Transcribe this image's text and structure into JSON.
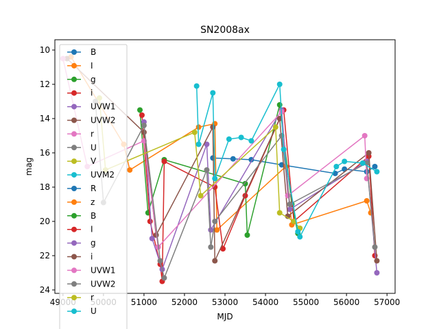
{
  "chart_data": {
    "type": "line",
    "title": "SN2008ax",
    "xlabel": "MJD",
    "ylabel": "mag",
    "xlim": [
      48800,
      57200
    ],
    "ylim": [
      24.2,
      9.4
    ],
    "y_inverted": true,
    "grid": false,
    "legend_placement": "upper-left",
    "xticks": [
      {
        "value": 49000,
        "label": "49000"
      },
      {
        "value": 50000,
        "label": "50000"
      },
      {
        "value": 51000,
        "label": "51000"
      },
      {
        "value": 52000,
        "label": "52000"
      },
      {
        "value": 53000,
        "label": "53000"
      },
      {
        "value": 54000,
        "label": "54000"
      },
      {
        "value": 55000,
        "label": "55000"
      },
      {
        "value": 56000,
        "label": "56000"
      },
      {
        "value": 57000,
        "label": "57000"
      }
    ],
    "yticks": [
      {
        "value": 10,
        "label": "10"
      },
      {
        "value": 12,
        "label": "12"
      },
      {
        "value": 14,
        "label": "14"
      },
      {
        "value": 16,
        "label": "16"
      },
      {
        "value": 18,
        "label": "18"
      },
      {
        "value": 20,
        "label": "20"
      },
      {
        "value": 22,
        "label": "22"
      },
      {
        "value": 24,
        "label": "24"
      }
    ],
    "series": [
      {
        "name": "B",
        "color": "#1f77b4",
        "x": [
          52700,
          53200,
          53650,
          54400,
          55720,
          55950,
          56500,
          56700
        ],
        "y": [
          16.3,
          16.35,
          16.4,
          16.7,
          17.2,
          16.95,
          17.1,
          16.8
        ]
      },
      {
        "name": "I",
        "color": "#ff7f0e",
        "x": [
          49200,
          50500,
          50650,
          52350,
          52750,
          52800,
          54500,
          54650,
          56500,
          56600
        ],
        "y": [
          10.4,
          15.5,
          17.0,
          14.5,
          14.3,
          20.5,
          16.8,
          20.2,
          18.8,
          19.5
        ]
      },
      {
        "name": "g",
        "color": "#2ca02c",
        "x": [
          50900,
          51100,
          51500,
          53500,
          53550,
          54350,
          54650,
          54800
        ],
        "y": [
          13.5,
          19.5,
          16.4,
          17.8,
          20.8,
          13.2,
          19.0,
          20.7
        ]
      },
      {
        "name": "i",
        "color": "#d62728",
        "x": [
          50950,
          51150,
          51400,
          51450,
          51500,
          52750,
          52950,
          53500,
          54450,
          54700,
          56550,
          56700
        ],
        "y": [
          13.8,
          20.0,
          22.5,
          23.5,
          16.5,
          18.0,
          21.6,
          18.5,
          13.5,
          20.0,
          16.2,
          22.0
        ]
      },
      {
        "name": "UVW1",
        "color": "#9467bd",
        "x": [
          51000,
          51200,
          51450,
          52550,
          52650,
          54400,
          54600,
          56500,
          56750
        ],
        "y": [
          14.2,
          21.0,
          22.8,
          15.5,
          20.5,
          13.5,
          19.3,
          16.5,
          23.0
        ]
      },
      {
        "name": "UVW2",
        "color": "#8c564b",
        "x": [
          49100,
          51000,
          51300,
          52700,
          52750,
          54350,
          54550,
          56550,
          56750
        ],
        "y": [
          10.5,
          14.8,
          20.8,
          14.5,
          22.3,
          14.0,
          19.7,
          16.0,
          22.3
        ]
      },
      {
        "name": "r",
        "color": "#e377c2",
        "x": [
          49000,
          49600,
          51000,
          51350,
          54400,
          54550,
          56450,
          56500
        ],
        "y": [
          10.5,
          16.8,
          15.3,
          21.5,
          13.6,
          18.5,
          15.0,
          17.5
        ]
      },
      {
        "name": "U",
        "color": "#7f7f7f",
        "x": [
          49800,
          50000,
          51000,
          51400,
          51500,
          52550,
          52650,
          52750,
          54400,
          54600,
          56500,
          56700
        ],
        "y": [
          13.0,
          18.9,
          14.4,
          22.3,
          23.3,
          17.0,
          21.5,
          20.0,
          15.0,
          19.0,
          16.6,
          21.5
        ]
      },
      {
        "name": "V",
        "color": "#bcbd22",
        "x": [
          49900,
          50050,
          52250,
          52400,
          54250,
          54350,
          54700,
          54850
        ],
        "y": [
          12.8,
          17.0,
          14.8,
          18.5,
          14.5,
          19.5,
          20.0,
          20.4
        ]
      },
      {
        "name": "UVM2",
        "color": "#17becf",
        "x": [
          52300,
          52350,
          52700,
          52750,
          53100,
          53400,
          53650,
          54350,
          54450,
          54800,
          54850,
          55750,
          55950,
          56400,
          56750
        ],
        "y": [
          12.1,
          15.5,
          12.5,
          17.5,
          15.2,
          15.1,
          15.3,
          12.0,
          15.8,
          20.6,
          20.9,
          16.8,
          16.5,
          16.6,
          17.1
        ]
      }
    ],
    "legend": [
      {
        "label": "B",
        "color": "#1f77b4"
      },
      {
        "label": "I",
        "color": "#ff7f0e"
      },
      {
        "label": "g",
        "color": "#2ca02c"
      },
      {
        "label": "i",
        "color": "#d62728"
      },
      {
        "label": "UVW1",
        "color": "#9467bd"
      },
      {
        "label": "UVW2",
        "color": "#8c564b"
      },
      {
        "label": "r",
        "color": "#e377c2"
      },
      {
        "label": "U",
        "color": "#7f7f7f"
      },
      {
        "label": "V",
        "color": "#bcbd22"
      },
      {
        "label": "UVM2",
        "color": "#17becf"
      },
      {
        "label": "R",
        "color": "#1f77b4"
      },
      {
        "label": "z",
        "color": "#ff7f0e"
      },
      {
        "label": "B",
        "color": "#2ca02c"
      },
      {
        "label": "I",
        "color": "#d62728"
      },
      {
        "label": "g",
        "color": "#9467bd"
      },
      {
        "label": "i",
        "color": "#8c564b"
      },
      {
        "label": "UVW1",
        "color": "#e377c2"
      },
      {
        "label": "UVW2",
        "color": "#7f7f7f"
      },
      {
        "label": "r",
        "color": "#bcbd22"
      },
      {
        "label": "U",
        "color": "#17becf"
      }
    ]
  }
}
